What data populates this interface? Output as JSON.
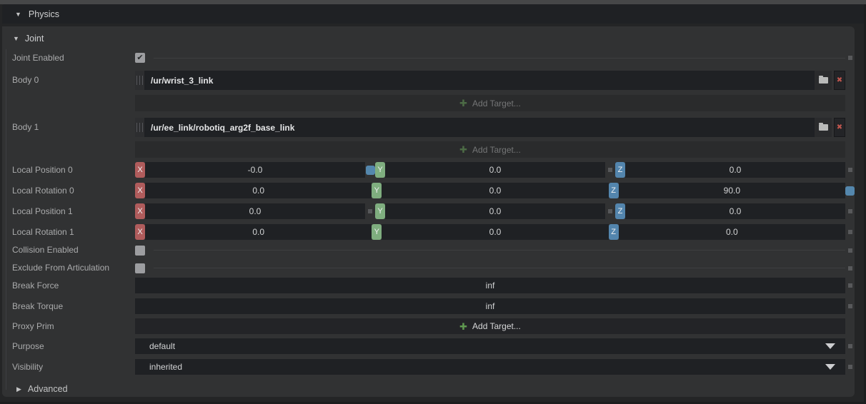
{
  "header": {
    "title": "Physics"
  },
  "section": {
    "title": "Joint",
    "advanced_label": "Advanced"
  },
  "axis": {
    "x": "X",
    "y": "Y",
    "z": "Z"
  },
  "icons": {
    "collapse_open": "▼",
    "collapse_closed": "▶",
    "checkmark": "✔",
    "plus": "✚",
    "delete": "✖"
  },
  "rows": {
    "joint_enabled": {
      "label": "Joint Enabled",
      "checked": true
    },
    "body0": {
      "label": "Body 0",
      "path": "/ur/wrist_3_link",
      "add_target": "Add Target..."
    },
    "body1": {
      "label": "Body 1",
      "path": "/ur/ee_link/robotiq_arg2f_base_link",
      "add_target": "Add Target..."
    },
    "local_position_0": {
      "label": "Local Position 0",
      "x": "-0.0",
      "y": "0.0",
      "z": "0.0"
    },
    "local_rotation_0": {
      "label": "Local Rotation 0",
      "x": "0.0",
      "y": "0.0",
      "z": "90.0"
    },
    "local_position_1": {
      "label": "Local Position 1",
      "x": "0.0",
      "y": "0.0",
      "z": "0.0"
    },
    "local_rotation_1": {
      "label": "Local Rotation 1",
      "x": "0.0",
      "y": "0.0",
      "z": "0.0"
    },
    "collision_enabled": {
      "label": "Collision Enabled",
      "checked": false
    },
    "exclude_from_articulation": {
      "label": "Exclude From Articulation",
      "checked": false
    },
    "break_force": {
      "label": "Break Force",
      "value": "inf"
    },
    "break_torque": {
      "label": "Break Torque",
      "value": "inf"
    },
    "proxy_prim": {
      "label": "Proxy Prim",
      "add_target": "Add Target..."
    },
    "purpose": {
      "label": "Purpose",
      "value": "default"
    },
    "visibility": {
      "label": "Visibility",
      "value": "inherited"
    }
  },
  "colors": {
    "accent_blue": "#5487ad",
    "axis_x": "#b05c5c",
    "axis_y": "#7fae7f",
    "axis_z": "#5385ad",
    "add_target_green": "#5f9950",
    "delete_red": "#c0564e",
    "panel_bg": "#313233",
    "field_bg": "#1f2124"
  }
}
